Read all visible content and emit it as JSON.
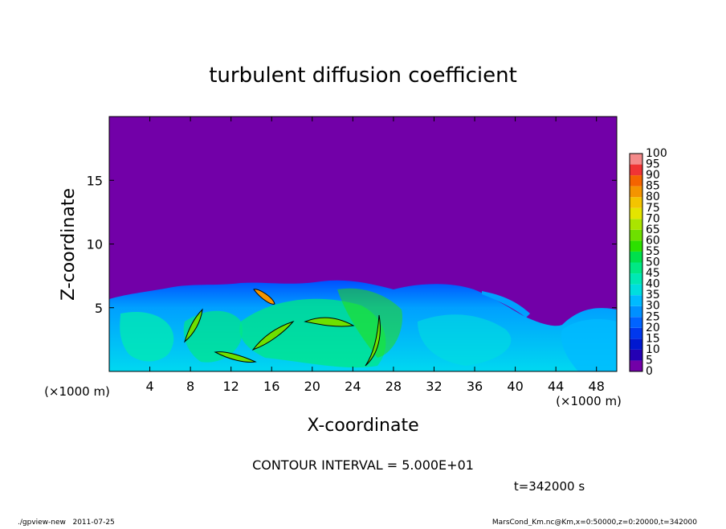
{
  "chart_data": {
    "type": "contour",
    "title": "turbulent diffusion coefficient",
    "xlabel": "X-coordinate",
    "ylabel": "Z-coordinate",
    "xunit": "(×1000 m)",
    "yunit": "(×1000 m)",
    "xlim": [
      0,
      50
    ],
    "xticks": [
      4,
      8,
      12,
      16,
      20,
      24,
      28,
      32,
      36,
      40,
      44,
      48
    ],
    "ylim": [
      0,
      20
    ],
    "yticks": [
      5,
      10,
      15
    ],
    "contour_note": "CONTOUR INTERVAL = 5.000E+01",
    "time_label": "t=342000 s",
    "footer_left": "./gpview-new   2011-07-25",
    "footer_right": "MarsCond_Km.nc@Km,x=0:50000,z=0:20000,t=342000",
    "colorbar": {
      "levels": [
        0,
        5,
        10,
        15,
        20,
        25,
        30,
        35,
        40,
        45,
        50,
        55,
        60,
        65,
        70,
        75,
        80,
        85,
        90,
        95,
        100
      ],
      "colors": [
        "#7200a8",
        "#2400b4",
        "#0018d0",
        "#0038ee",
        "#0064ff",
        "#0090ff",
        "#00baff",
        "#00dede",
        "#00e8b4",
        "#00e884",
        "#00e04c",
        "#2ce000",
        "#6ee000",
        "#aae400",
        "#e4e400",
        "#f4c400",
        "#f49400",
        "#f46400",
        "#f03434",
        "#f48a8a"
      ]
    }
  }
}
